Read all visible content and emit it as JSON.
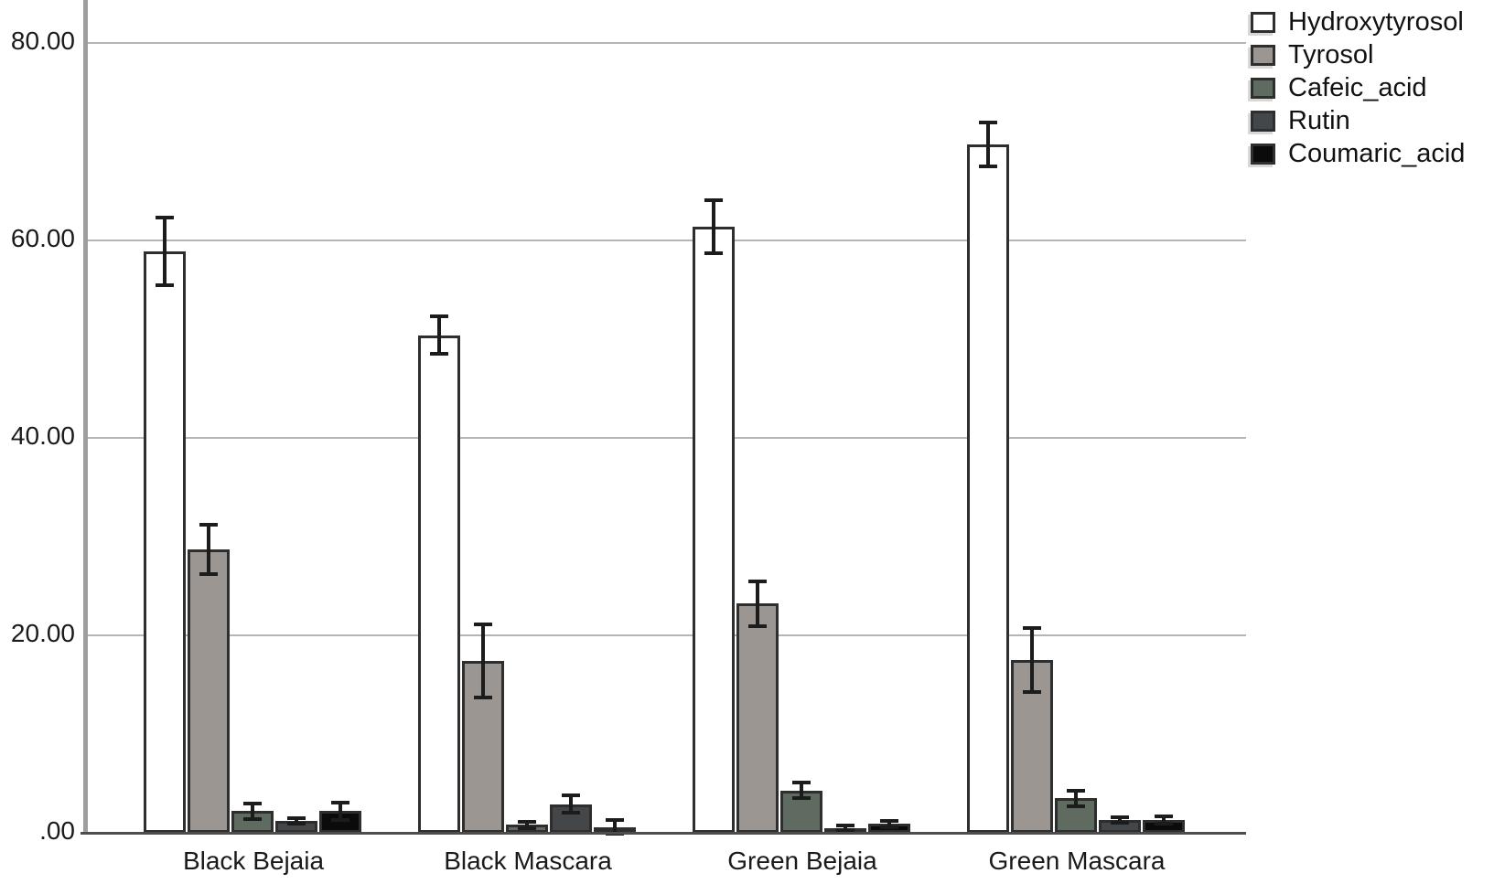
{
  "chart_data": {
    "type": "bar",
    "title": "",
    "xlabel": "",
    "ylabel": "",
    "grid": "horizontal",
    "legend_position": "top-right",
    "ylim": [
      0,
      84.4
    ],
    "yticks": {
      "values": [
        0,
        20,
        40,
        60,
        80
      ],
      "labels": [
        ".00",
        "20.00",
        "40.00",
        "60.00",
        "80.00"
      ]
    },
    "categories": [
      "Black Bejaia",
      "Black Mascara",
      "Green Bejaia",
      "Green Mascara"
    ],
    "series": [
      {
        "name": "Hydroxytyrosol",
        "color": "#ffffff",
        "values": [
          58.9,
          50.4,
          61.4,
          69.7
        ],
        "errors": [
          3.4,
          1.9,
          2.7,
          2.2
        ]
      },
      {
        "name": "Tyrosol",
        "color": "#9b9692",
        "values": [
          28.7,
          17.4,
          23.2,
          17.5
        ],
        "errors": [
          2.5,
          3.7,
          2.3,
          3.2
        ]
      },
      {
        "name": "Cafeic_acid",
        "color": "#5f6b61",
        "values": [
          2.2,
          0.8,
          4.3,
          3.5
        ],
        "errors": [
          0.8,
          0.3,
          0.8,
          0.8
        ]
      },
      {
        "name": "Rutin",
        "color": "#43474a",
        "values": [
          1.2,
          2.9,
          0.5,
          1.3
        ],
        "errors": [
          0.3,
          0.9,
          0.2,
          0.3
        ]
      },
      {
        "name": "Coumaric_acid",
        "color": "#0b0b0b",
        "values": [
          2.2,
          0.6,
          0.9,
          1.3
        ],
        "errors": [
          0.9,
          0.7,
          0.3,
          0.4
        ]
      }
    ],
    "colors": {
      "gridline": "#b5b5b5",
      "y_axis": "#9e9e9e",
      "x_axis": "#4d4d4d",
      "bar_border": "#2e2e2e",
      "error_bar": "#1c1c1c",
      "text": "#1a1a1a"
    }
  }
}
